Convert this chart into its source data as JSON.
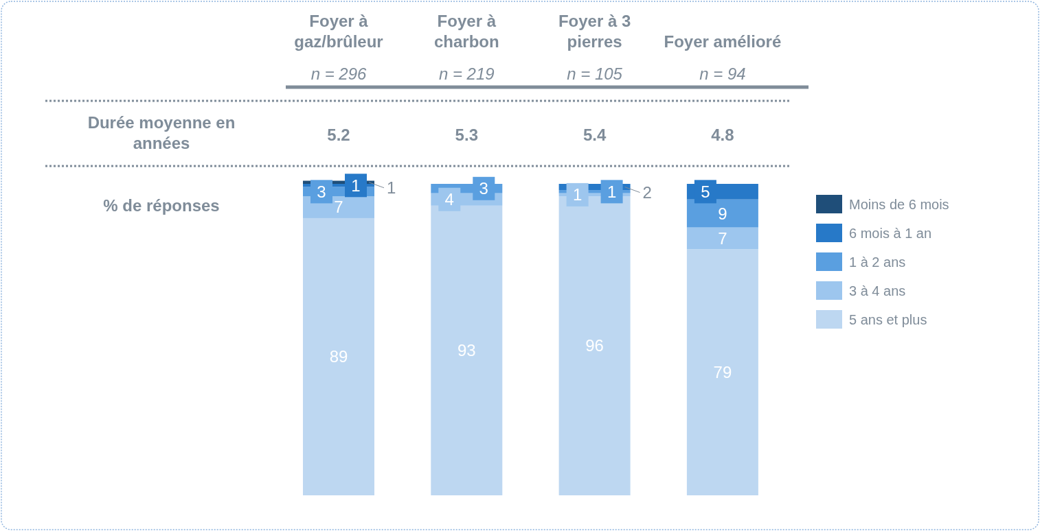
{
  "chart_data": {
    "type": "bar",
    "stacked": true,
    "data_labels": true,
    "legend": "right",
    "categories": [
      "Foyer à gaz/brûleur",
      "Foyer à charbon",
      "Foyer à 3 pierres",
      "Foyer amélioré"
    ],
    "series": [
      {
        "name": "5 ans et plus",
        "color": "#bdd7f1",
        "values": [
          89,
          93,
          96,
          79
        ]
      },
      {
        "name": "3 à 4 ans",
        "color": "#9dc6ee",
        "values": [
          7,
          4,
          1,
          7
        ]
      },
      {
        "name": "1 à 2 ans",
        "color": "#5a9fe0",
        "values": [
          3,
          3,
          1,
          9
        ]
      },
      {
        "name": "6 mois à 1 an",
        "color": "#2779c8",
        "values": [
          1,
          null,
          2,
          5
        ]
      },
      {
        "name": "Moins de 6 mois",
        "color": "#1f4e79",
        "values": [
          1,
          null,
          null,
          null
        ]
      }
    ],
    "annotations": [
      "n = 296",
      "n = 219",
      "n = 105",
      "n = 94",
      "Durée moyenne en années",
      "5.2",
      "5.3",
      "5.4",
      "4.8",
      "% de réponses"
    ]
  }
}
